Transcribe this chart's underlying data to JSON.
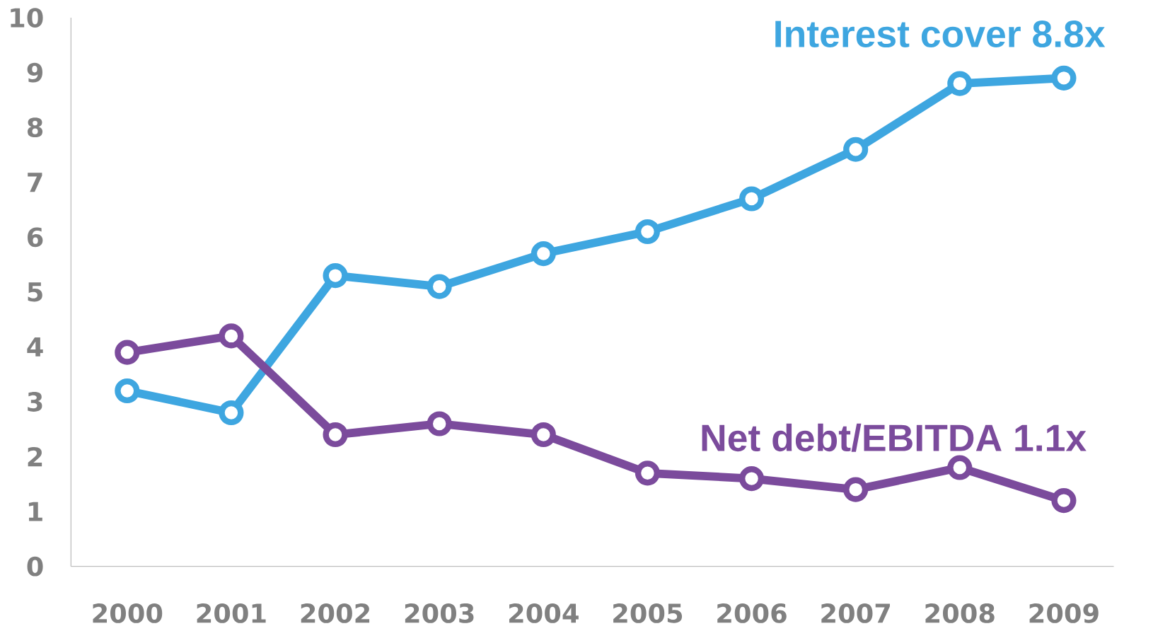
{
  "chart_data": {
    "type": "line",
    "categories": [
      "2000",
      "2001",
      "2002",
      "2003",
      "2004",
      "2005",
      "2006",
      "2007",
      "2008",
      "2009"
    ],
    "series": [
      {
        "name": "Interest cover 8.8x",
        "color": "#3ea6e0",
        "values": [
          3.2,
          2.8,
          5.3,
          5.1,
          5.7,
          6.1,
          6.7,
          7.6,
          8.8,
          8.9
        ]
      },
      {
        "name": "Net debt/EBITDA 1.1x",
        "color": "#7b4b9c",
        "values": [
          3.9,
          4.2,
          2.4,
          2.6,
          2.4,
          1.7,
          1.6,
          1.4,
          1.8,
          1.2
        ]
      }
    ],
    "ylim": [
      0,
      10
    ],
    "yticks": [
      0,
      1,
      2,
      3,
      4,
      5,
      6,
      7,
      8,
      9,
      10
    ],
    "grid": false,
    "marker": "circle",
    "line_style": "solid"
  }
}
